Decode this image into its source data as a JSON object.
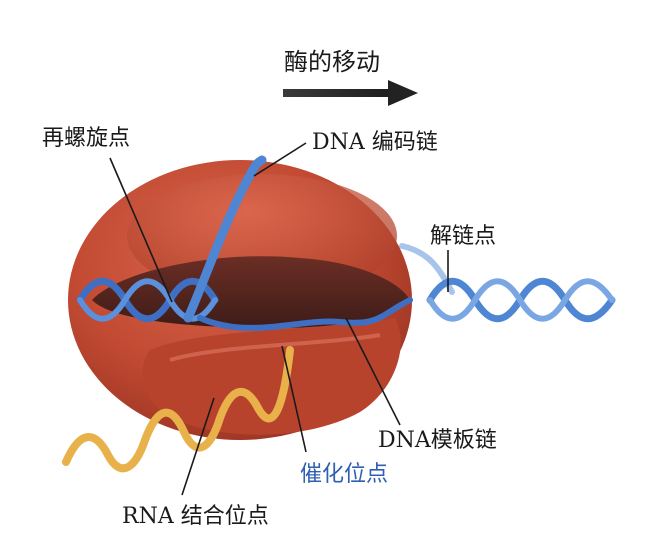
{
  "title": "酶的移动",
  "labels": {
    "rewind_point": "再螺旋点",
    "dna_coding_strand": "DNA 编码链",
    "unwinding_point": "解链点",
    "dna_template_strand": "DNA模板链",
    "catalytic_site": "催化位点",
    "rna_binding_site": "RNA 结合位点"
  },
  "colors": {
    "enzyme": "#c24a33",
    "enzyme_dark": "#5a2a24",
    "dna": "#4f86d3",
    "rna": "#e8b14a",
    "catalytic_label": "#2f5fb3",
    "arrow": "#2b2b2b"
  }
}
